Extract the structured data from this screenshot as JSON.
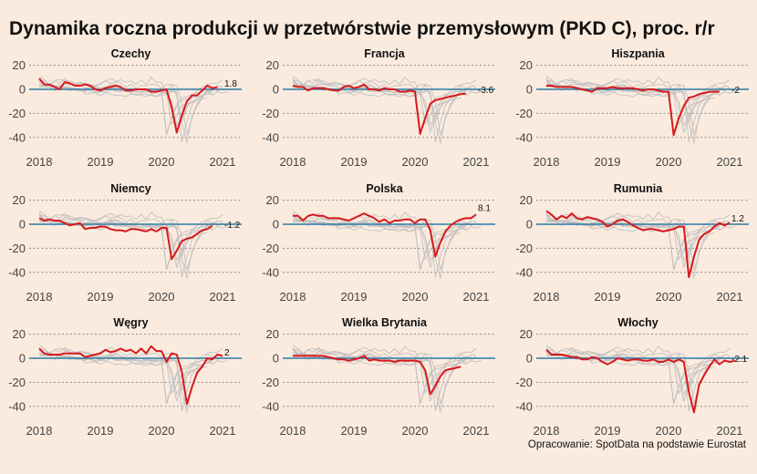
{
  "title": "Dynamika roczna produkcji w przetwórstwie przemysłowym (PKD C), proc. r/r",
  "source": "Opracowanie: SpotData na podstawie Eurostat",
  "colors": {
    "background": "#fbebdf",
    "highlight": "#d7191c",
    "others": "#bdbdbd",
    "zero_line": "#2b7ba6",
    "grid": "#8a8a8a"
  },
  "chart_data": {
    "type": "line",
    "layout": "small-multiples 3x3",
    "x_start": "2018-01",
    "x_frequency": "monthly",
    "xticks": [
      "2018",
      "2019",
      "2020",
      "2021"
    ],
    "yticks": [
      20,
      0,
      -20,
      -40
    ],
    "ylim": [
      -47,
      22
    ],
    "xlim": [
      2018,
      2021.3
    ],
    "grid": "horizontal dotted",
    "panels": [
      {
        "name": "Czechy",
        "last_label": "1.8",
        "values": [
          9,
          4,
          4,
          2,
          0,
          6,
          5,
          3,
          3,
          4,
          3,
          0,
          -1,
          1,
          2,
          3,
          2,
          -1,
          -1,
          0,
          0,
          0,
          -2,
          -2,
          -1,
          0,
          -15,
          -36,
          -22,
          -10,
          -5,
          -5,
          -1,
          3,
          1,
          1.8
        ]
      },
      {
        "name": "Francja",
        "last_label": "-3.6",
        "values": [
          3,
          2,
          2,
          -1,
          1,
          1,
          1,
          0,
          -1,
          -1,
          2,
          3,
          1,
          2,
          4,
          0,
          0,
          -1,
          1,
          0,
          0,
          -2,
          -2,
          -1,
          -2,
          -37,
          -24,
          -12,
          -9,
          -8,
          -7,
          -6,
          -5,
          -4,
          -3.6
        ]
      },
      {
        "name": "Hiszpania",
        "last_label": "-2",
        "values": [
          3,
          3,
          2,
          2,
          2,
          2,
          1,
          0,
          -1,
          -2,
          1,
          1,
          1,
          2,
          1,
          1,
          1,
          1,
          0,
          -1,
          0,
          0,
          -1,
          -2,
          -2,
          -38,
          -24,
          -14,
          -7,
          -6,
          -4,
          -3,
          -2,
          -2,
          -2
        ]
      },
      {
        "name": "Niemcy",
        "last_label": "-1.2",
        "values": [
          5,
          3,
          4,
          3,
          3,
          1,
          -1,
          0,
          1,
          -4,
          -3,
          -3,
          -2,
          -2,
          -4,
          -5,
          -5,
          -6,
          -4,
          -4,
          -5,
          -6,
          -4,
          -6,
          -3,
          -3,
          -29,
          -22,
          -14,
          -12,
          -11,
          -8,
          -5,
          -4,
          -1.2
        ]
      },
      {
        "name": "Polska",
        "last_label": "8.1",
        "values": [
          7,
          7,
          3,
          7,
          8,
          7,
          7,
          5,
          5,
          5,
          4,
          3,
          5,
          7,
          9,
          7,
          5,
          2,
          4,
          1,
          3,
          3,
          4,
          4,
          1,
          4,
          4,
          -5,
          -27,
          -15,
          -6,
          -1,
          2,
          4,
          5,
          5,
          8.1
        ]
      },
      {
        "name": "Rumunia",
        "last_label": "1.2",
        "values": [
          11,
          8,
          4,
          7,
          5,
          9,
          5,
          4,
          6,
          5,
          4,
          2,
          -2,
          0,
          3,
          4,
          2,
          -1,
          -3,
          -5,
          -4,
          -4,
          -5,
          -6,
          -5,
          -4,
          -2,
          -2,
          -44,
          -27,
          -13,
          -8,
          -6,
          -2,
          1,
          -1,
          1.2
        ]
      },
      {
        "name": "Węgry",
        "last_label": "2",
        "values": [
          8,
          4,
          3,
          3,
          3,
          4,
          4,
          4,
          4,
          1,
          2,
          3,
          4,
          7,
          5,
          6,
          8,
          6,
          7,
          4,
          8,
          4,
          10,
          6,
          6,
          -3,
          4,
          3,
          -11,
          -38,
          -24,
          -12,
          -7,
          0,
          -1,
          3,
          2
        ]
      },
      {
        "name": "Wielka Brytania",
        "last_label": "",
        "values": [
          2,
          2,
          2,
          2,
          2,
          2,
          2,
          1,
          0,
          -1,
          -1,
          -2,
          -1,
          0,
          2,
          -2,
          -1,
          -2,
          -2,
          -2,
          -3,
          -2,
          -2,
          -2,
          -2,
          -3,
          -10,
          -30,
          -23,
          -15,
          -10,
          -9,
          -8,
          -7
        ]
      },
      {
        "name": "Włochy",
        "last_label": "-2.1",
        "values": [
          7,
          3,
          3,
          3,
          2,
          1,
          1,
          -1,
          -1,
          1,
          0,
          -3,
          -5,
          -3,
          0,
          -1,
          -2,
          -1,
          -1,
          -2,
          -2,
          -1,
          -3,
          -3,
          -1,
          -3,
          -1,
          -3,
          -28,
          -45,
          -22,
          -14,
          -7,
          -1,
          -5,
          -2,
          -3,
          -2.1
        ]
      }
    ],
    "background_series_note": "thin grey lines: remaining countries for comparison"
  }
}
